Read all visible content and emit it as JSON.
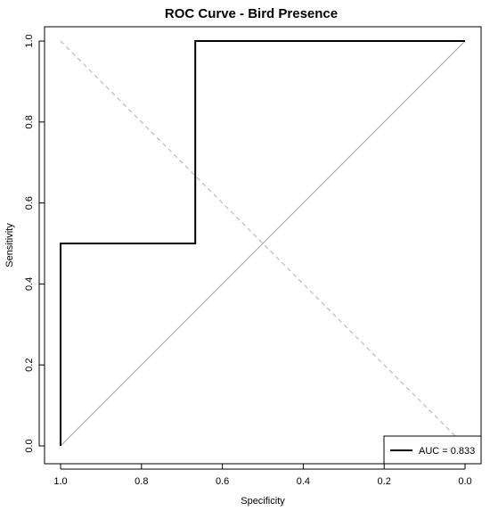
{
  "chart_data": {
    "type": "line",
    "title": "ROC Curve - Bird Presence",
    "xlabel": "Specificity",
    "ylabel": "Sensitivity",
    "x_reversed": true,
    "xlim": [
      1.0,
      0.0
    ],
    "ylim": [
      0.0,
      1.0
    ],
    "x_ticks": [
      "1.0",
      "0.8",
      "0.6",
      "0.4",
      "0.2",
      "0.0"
    ],
    "y_ticks": [
      "0.0",
      "0.2",
      "0.4",
      "0.6",
      "0.8",
      "1.0"
    ],
    "series": [
      {
        "name": "AUC = 0.833",
        "color": "#000000",
        "points": [
          {
            "specificity": 1.0,
            "sensitivity": 0.0
          },
          {
            "specificity": 1.0,
            "sensitivity": 0.5
          },
          {
            "specificity": 0.667,
            "sensitivity": 0.5
          },
          {
            "specificity": 0.667,
            "sensitivity": 1.0
          },
          {
            "specificity": 0.0,
            "sensitivity": 1.0
          }
        ]
      }
    ],
    "reference_lines": [
      {
        "kind": "diagonal",
        "from": [
          1.0,
          0.0
        ],
        "to": [
          0.0,
          1.0
        ],
        "color": "#a0a0a0",
        "style": "solid"
      },
      {
        "kind": "anti-diagonal",
        "from": [
          1.0,
          1.0
        ],
        "to": [
          0.0,
          0.0
        ],
        "color": "#b0b0b0",
        "style": "dashed"
      }
    ],
    "legend": {
      "position": "bottom-right",
      "entries": [
        "AUC = 0.833"
      ]
    },
    "grid": false
  }
}
